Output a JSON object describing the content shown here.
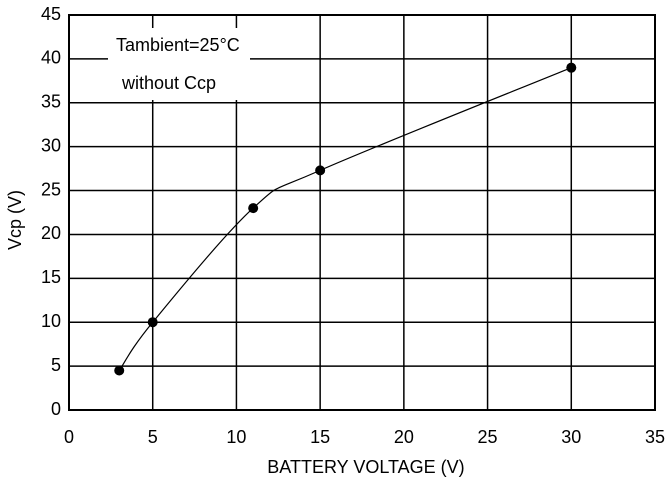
{
  "chart_data": {
    "type": "scatter",
    "xlabel": "BATTERY VOLTAGE (V)",
    "ylabel": "Vcp (V)",
    "annotations": [
      "Tambient=25°C",
      "without Ccp"
    ],
    "x": [
      3,
      5,
      11,
      15,
      30
    ],
    "values": [
      4.5,
      10,
      23,
      27.3,
      39
    ],
    "color": "#000000",
    "xlim": [
      0,
      35
    ],
    "xticks": [
      0,
      5,
      10,
      15,
      20,
      25,
      30,
      35
    ],
    "ylim": [
      0,
      45
    ],
    "yticks": [
      0,
      5,
      10,
      15,
      20,
      25,
      30,
      35,
      40,
      45
    ],
    "grid": true
  }
}
